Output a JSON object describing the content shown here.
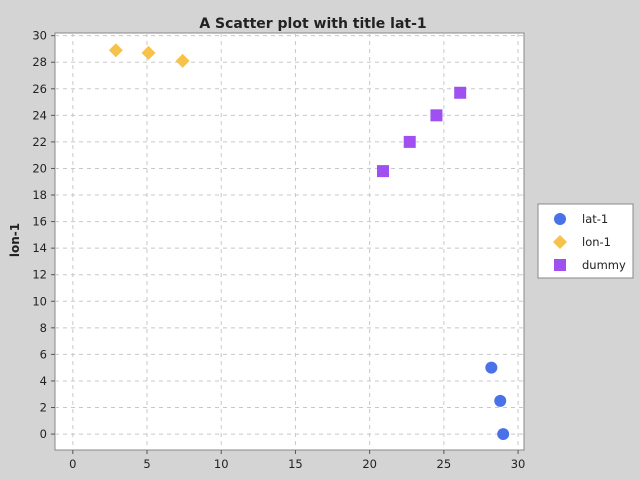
{
  "chart_data": {
    "type": "scatter",
    "title": "A Scatter plot with title lat-1",
    "xlabel": "",
    "ylabel": "lon-1",
    "xlim": [
      -1.2,
      30.4
    ],
    "ylim": [
      -1.2,
      30.2
    ],
    "xticks": [
      0,
      5,
      10,
      15,
      20,
      25,
      30
    ],
    "yticks": [
      0,
      2,
      4,
      6,
      8,
      10,
      12,
      14,
      16,
      18,
      20,
      22,
      24,
      26,
      28,
      30
    ],
    "grid": true,
    "legend_position": "right",
    "series": [
      {
        "name": "lat-1",
        "marker": "circle",
        "color": "#4a72e8",
        "points": [
          [
            28.2,
            5.0
          ],
          [
            28.8,
            2.5
          ],
          [
            29.0,
            0.0
          ]
        ]
      },
      {
        "name": "lon-1",
        "marker": "diamond",
        "color": "#f7c24a",
        "points": [
          [
            2.9,
            28.9
          ],
          [
            5.1,
            28.7
          ],
          [
            7.4,
            28.1
          ]
        ]
      },
      {
        "name": "dummy",
        "marker": "square",
        "color": "#a050f0",
        "points": [
          [
            20.9,
            19.8
          ],
          [
            22.7,
            22.0
          ],
          [
            24.5,
            24.0
          ],
          [
            26.1,
            25.7
          ]
        ]
      }
    ]
  }
}
